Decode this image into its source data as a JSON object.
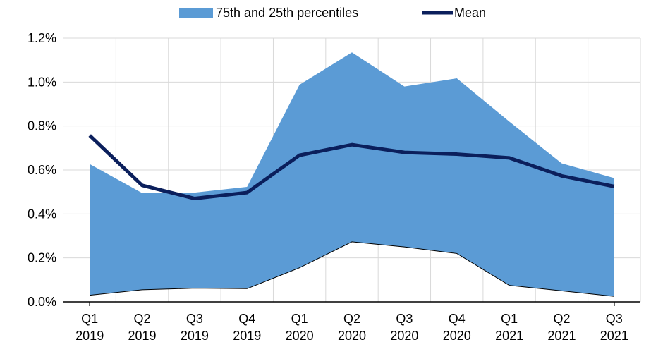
{
  "chart_data": {
    "type": "area",
    "categories": [
      [
        "Q1",
        "2019"
      ],
      [
        "Q2",
        "2019"
      ],
      [
        "Q3",
        "2019"
      ],
      [
        "Q4",
        "2019"
      ],
      [
        "Q1",
        "2020"
      ],
      [
        "Q2",
        "2020"
      ],
      [
        "Q3",
        "2020"
      ],
      [
        "Q4",
        "2020"
      ],
      [
        "Q1",
        "2021"
      ],
      [
        "Q2",
        "2021"
      ],
      [
        "Q3",
        "2021"
      ]
    ],
    "series": [
      {
        "name": "75th and 25th percentiles",
        "kind": "band",
        "color": "#5b9bd5",
        "upper": [
          0.627,
          0.495,
          0.497,
          0.523,
          0.988,
          1.135,
          0.98,
          1.017,
          0.82,
          0.63,
          0.563
        ],
        "lower": [
          0.03,
          0.055,
          0.062,
          0.06,
          0.155,
          0.273,
          0.25,
          0.22,
          0.075,
          0.05,
          0.025
        ]
      },
      {
        "name": "Mean",
        "kind": "line",
        "color": "#0b1f5c",
        "values": [
          0.757,
          0.53,
          0.47,
          0.497,
          0.667,
          0.715,
          0.68,
          0.672,
          0.655,
          0.573,
          0.525
        ]
      }
    ],
    "yticks": [
      "0.0%",
      "0.2%",
      "0.4%",
      "0.6%",
      "0.8%",
      "1.0%",
      "1.2%"
    ],
    "ylim": [
      0,
      1.2
    ],
    "grid": true,
    "legend_position": "top-center"
  }
}
